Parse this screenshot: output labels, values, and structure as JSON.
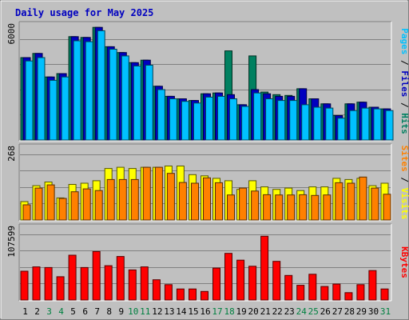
{
  "chart_data": {
    "type": "bar",
    "title": "Daily usage for May 2025",
    "categories": [
      "1",
      "2",
      "3",
      "4",
      "5",
      "6",
      "7",
      "8",
      "9",
      "10",
      "11",
      "12",
      "13",
      "14",
      "15",
      "16",
      "17",
      "18",
      "19",
      "20",
      "21",
      "22",
      "23",
      "24",
      "25",
      "26",
      "27",
      "28",
      "29",
      "30",
      "31"
    ],
    "weekend_days": [
      "3",
      "4",
      "10",
      "11",
      "17",
      "18",
      "24",
      "25",
      "31"
    ],
    "panels": [
      {
        "id": "hits-files-pages",
        "ymax_label": "6000",
        "ylim": [
          0,
          6900
        ],
        "label_parts": [
          {
            "text": "Pages",
            "color": "#00c0ff"
          },
          {
            "text": " / ",
            "color": "#000000"
          },
          {
            "text": "Files",
            "color": "#0000c0"
          },
          {
            "text": " / ",
            "color": "#000000"
          },
          {
            "text": "Hits",
            "color": "#008060"
          }
        ],
        "series": [
          {
            "name": "Hits",
            "color": "#008060",
            "values": [
              4900,
              5150,
              3750,
              3950,
              6150,
              6100,
              6700,
              5550,
              5200,
              4600,
              4750,
              3200,
              2600,
              2450,
              2350,
              2750,
              2800,
              5300,
              2100,
              5000,
              2850,
              2700,
              2650,
              3050,
              2450,
              2150,
              1450,
              2150,
              2250,
              1950,
              1850
            ]
          },
          {
            "name": "Files",
            "color": "#0000c0",
            "values": [
              4900,
              5150,
              3750,
              3950,
              6150,
              6100,
              6700,
              5550,
              5200,
              4600,
              4750,
              3200,
              2600,
              2450,
              2350,
              2750,
              2800,
              2700,
              2100,
              3000,
              2750,
              2600,
              2600,
              3050,
              2450,
              2150,
              1450,
              2150,
              2250,
              1950,
              1850
            ]
          },
          {
            "name": "Pages",
            "color": "#00c0ff",
            "values": [
              4700,
              4900,
              3550,
              3750,
              5900,
              5850,
              6500,
              5400,
              5000,
              4400,
              4450,
              3000,
              2450,
              2300,
              2200,
              2550,
              2600,
              2450,
              2000,
              2800,
              2450,
              2350,
              2350,
              2100,
              1950,
              1900,
              1300,
              1750,
              1900,
              1850,
              1750
            ]
          }
        ]
      },
      {
        "id": "visits-sites",
        "ymax_label": "268",
        "ylim": [
          0,
          300
        ],
        "label_parts": [
          {
            "text": "Sites",
            "color": "#ff8000"
          },
          {
            "text": " / ",
            "color": "#000000"
          },
          {
            "text": "Visits",
            "color": "#ffff00"
          }
        ],
        "series": [
          {
            "name": "Visits",
            "color": "#ffff00",
            "values": [
              75,
              140,
              155,
              90,
              145,
              150,
              160,
              210,
              215,
              210,
              215,
              215,
              220,
              220,
              185,
              180,
              170,
              160,
              125,
              160,
              135,
              125,
              130,
              120,
              135,
              135,
              170,
              165,
              170,
              140,
              150
            ]
          },
          {
            "name": "Sites",
            "color": "#ff8000",
            "values": [
              62,
              130,
              143,
              88,
              115,
              127,
              120,
              165,
              165,
              165,
              215,
              215,
              190,
              153,
              150,
              172,
              152,
              102,
              130,
              118,
              103,
              102,
              102,
              103,
              100,
              102,
              152,
              150,
              175,
              130,
              105
            ]
          }
        ]
      },
      {
        "id": "kbytes",
        "ymax_label": "107599",
        "ylim": [
          0,
          120000
        ],
        "label_parts": [
          {
            "text": "KBytes",
            "color": "#ff0000"
          }
        ],
        "series": [
          {
            "name": "KBytes",
            "color": "#ff0000",
            "values": [
              47000,
              54000,
              53000,
              38000,
              73000,
              53000,
              79000,
              56000,
              71000,
              49000,
              54000,
              33000,
              25000,
              18000,
              18000,
              14000,
              52000,
              76000,
              65000,
              55000,
              104000,
              63000,
              40000,
              24000,
              42000,
              22000,
              26000,
              12000,
              25000,
              48000,
              18000
            ]
          }
        ]
      }
    ]
  }
}
